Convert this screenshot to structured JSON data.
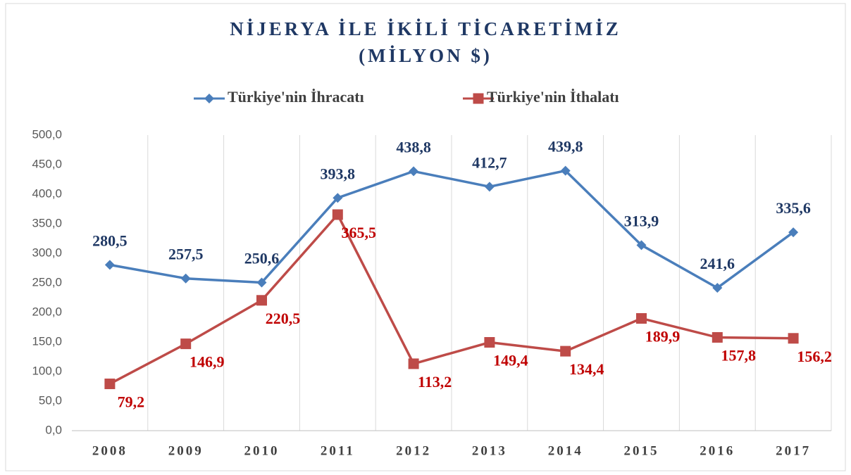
{
  "chart_data": {
    "type": "line",
    "title": "NİJERYA İLE İKİLİ TİCARETİMİZ",
    "subtitle": "(MİLYON $)",
    "categories": [
      "2008",
      "2009",
      "2010",
      "2011",
      "2012",
      "2013",
      "2014",
      "2015",
      "2016",
      "2017"
    ],
    "series": [
      {
        "name": "Türkiye'nin İhracatı",
        "color": "#4a7ebb",
        "label_color": "#1f3864",
        "marker": "diamond",
        "label_position": "above",
        "values": [
          280.5,
          257.5,
          250.6,
          393.8,
          438.8,
          412.7,
          439.8,
          313.9,
          241.6,
          335.6
        ],
        "value_labels": [
          "280,5",
          "257,5",
          "250,6",
          "393,8",
          "438,8",
          "412,7",
          "439,8",
          "313,9",
          "241,6",
          "335,6"
        ]
      },
      {
        "name": "Türkiye'nin İthalatı",
        "color": "#be4b48",
        "label_color": "#c00000",
        "marker": "square",
        "label_position": "below",
        "values": [
          79.2,
          146.9,
          220.5,
          365.5,
          113.2,
          149.4,
          134.4,
          189.9,
          157.8,
          156.2
        ],
        "value_labels": [
          "79,2",
          "146,9",
          "220,5",
          "365,5",
          "113,2",
          "149,4",
          "134,4",
          "189,9",
          "157,8",
          "156,2"
        ]
      }
    ],
    "ylim": [
      0,
      500
    ],
    "yticks": [
      {
        "value": 0,
        "label": "0,0"
      },
      {
        "value": 50,
        "label": "50,0"
      },
      {
        "value": 100,
        "label": "100,0"
      },
      {
        "value": 150,
        "label": "150,0"
      },
      {
        "value": 200,
        "label": "200,0"
      },
      {
        "value": 250,
        "label": "250,0"
      },
      {
        "value": 300,
        "label": "300,0"
      },
      {
        "value": 350,
        "label": "350,0"
      },
      {
        "value": 400,
        "label": "400,0"
      },
      {
        "value": 450,
        "label": "450,0"
      },
      {
        "value": 500,
        "label": "500,0"
      }
    ],
    "grid": "vertical",
    "legend": "top"
  }
}
